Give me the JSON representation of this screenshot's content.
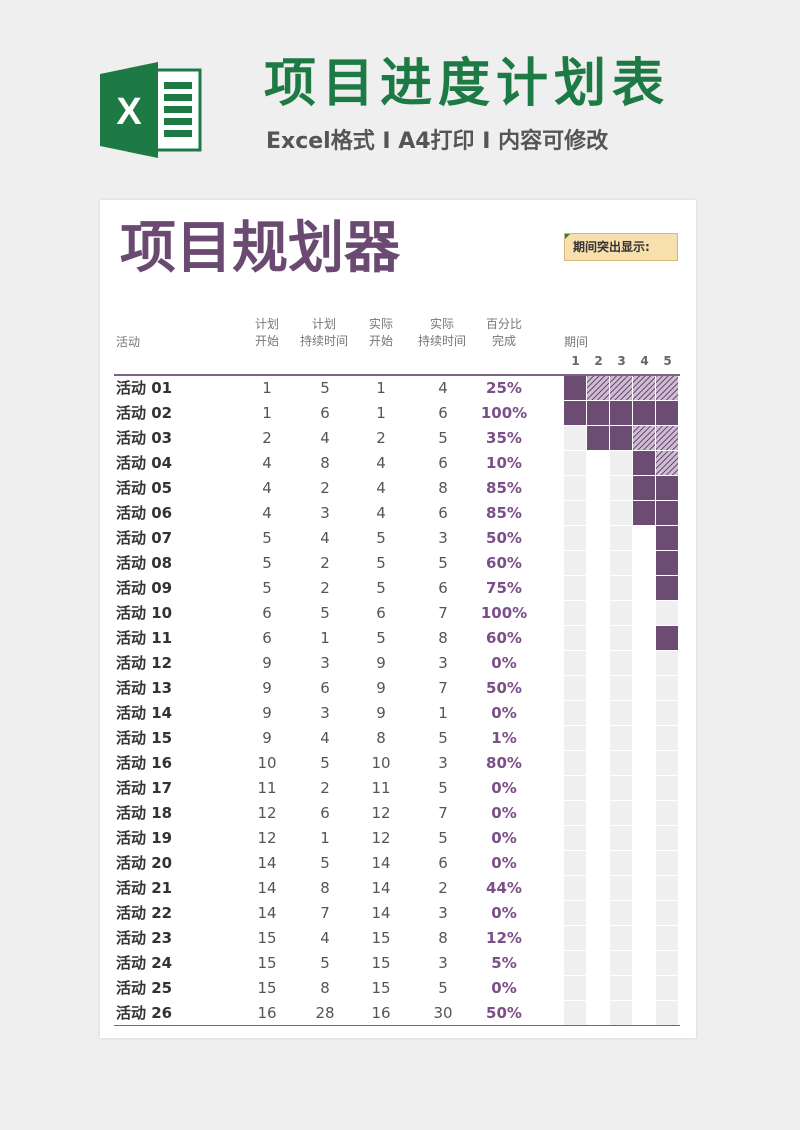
{
  "banner": {
    "title": "项目进度计划表",
    "subtitle": "Excel格式 I A4打印 I 内容可修改",
    "logo_letter": "X"
  },
  "sheet": {
    "title": "项目规划器",
    "highlight_label": "期间突出显示:",
    "headers": {
      "activity": "活动",
      "plan_start": [
        "计划",
        "开始"
      ],
      "plan_duration": [
        "计划",
        "持续时间"
      ],
      "actual_start": [
        "实际",
        "开始"
      ],
      "actual_duration": [
        "实际",
        "持续时间"
      ],
      "percent_complete": [
        "百分比",
        "完成"
      ],
      "period": "期间"
    },
    "periods": [
      "1",
      "2",
      "3",
      "4",
      "5"
    ],
    "colors": {
      "accent_purple": "#6d4c74",
      "plan_hatch": "#cdbdd2",
      "beyond_plan": "#e8a951",
      "title_green": "#1e7a45",
      "highlight_bg": "#f8dfae"
    },
    "activities": [
      {
        "name": "活动 01",
        "plan_start": "1",
        "plan_duration": "5",
        "actual_start": "1",
        "actual_duration": "4",
        "percent": "25%"
      },
      {
        "name": "活动 02",
        "plan_start": "1",
        "plan_duration": "6",
        "actual_start": "1",
        "actual_duration": "6",
        "percent": "100%"
      },
      {
        "name": "活动 03",
        "plan_start": "2",
        "plan_duration": "4",
        "actual_start": "2",
        "actual_duration": "5",
        "percent": "35%"
      },
      {
        "name": "活动 04",
        "plan_start": "4",
        "plan_duration": "8",
        "actual_start": "4",
        "actual_duration": "6",
        "percent": "10%"
      },
      {
        "name": "活动 05",
        "plan_start": "4",
        "plan_duration": "2",
        "actual_start": "4",
        "actual_duration": "8",
        "percent": "85%"
      },
      {
        "name": "活动 06",
        "plan_start": "4",
        "plan_duration": "3",
        "actual_start": "4",
        "actual_duration": "6",
        "percent": "85%"
      },
      {
        "name": "活动 07",
        "plan_start": "5",
        "plan_duration": "4",
        "actual_start": "5",
        "actual_duration": "3",
        "percent": "50%"
      },
      {
        "name": "活动 08",
        "plan_start": "5",
        "plan_duration": "2",
        "actual_start": "5",
        "actual_duration": "5",
        "percent": "60%"
      },
      {
        "name": "活动 09",
        "plan_start": "5",
        "plan_duration": "2",
        "actual_start": "5",
        "actual_duration": "6",
        "percent": "75%"
      },
      {
        "name": "活动 10",
        "plan_start": "6",
        "plan_duration": "5",
        "actual_start": "6",
        "actual_duration": "7",
        "percent": "100%"
      },
      {
        "name": "活动 11",
        "plan_start": "6",
        "plan_duration": "1",
        "actual_start": "5",
        "actual_duration": "8",
        "percent": "60%"
      },
      {
        "name": "活动 12",
        "plan_start": "9",
        "plan_duration": "3",
        "actual_start": "9",
        "actual_duration": "3",
        "percent": "0%"
      },
      {
        "name": "活动 13",
        "plan_start": "9",
        "plan_duration": "6",
        "actual_start": "9",
        "actual_duration": "7",
        "percent": "50%"
      },
      {
        "name": "活动 14",
        "plan_start": "9",
        "plan_duration": "3",
        "actual_start": "9",
        "actual_duration": "1",
        "percent": "0%"
      },
      {
        "name": "活动 15",
        "plan_start": "9",
        "plan_duration": "4",
        "actual_start": "8",
        "actual_duration": "5",
        "percent": "1%"
      },
      {
        "name": "活动 16",
        "plan_start": "10",
        "plan_duration": "5",
        "actual_start": "10",
        "actual_duration": "3",
        "percent": "80%"
      },
      {
        "name": "活动 17",
        "plan_start": "11",
        "plan_duration": "2",
        "actual_start": "11",
        "actual_duration": "5",
        "percent": "0%"
      },
      {
        "name": "活动 18",
        "plan_start": "12",
        "plan_duration": "6",
        "actual_start": "12",
        "actual_duration": "7",
        "percent": "0%"
      },
      {
        "name": "活动 19",
        "plan_start": "12",
        "plan_duration": "1",
        "actual_start": "12",
        "actual_duration": "5",
        "percent": "0%"
      },
      {
        "name": "活动 20",
        "plan_start": "14",
        "plan_duration": "5",
        "actual_start": "14",
        "actual_duration": "6",
        "percent": "0%"
      },
      {
        "name": "活动 21",
        "plan_start": "14",
        "plan_duration": "8",
        "actual_start": "14",
        "actual_duration": "2",
        "percent": "44%"
      },
      {
        "name": "活动 22",
        "plan_start": "14",
        "plan_duration": "7",
        "actual_start": "14",
        "actual_duration": "3",
        "percent": "0%"
      },
      {
        "name": "活动 23",
        "plan_start": "15",
        "plan_duration": "4",
        "actual_start": "15",
        "actual_duration": "8",
        "percent": "12%"
      },
      {
        "name": "活动 24",
        "plan_start": "15",
        "plan_duration": "5",
        "actual_start": "15",
        "actual_duration": "3",
        "percent": "5%"
      },
      {
        "name": "活动 25",
        "plan_start": "15",
        "plan_duration": "8",
        "actual_start": "15",
        "actual_duration": "5",
        "percent": "0%"
      },
      {
        "name": "活动 26",
        "plan_start": "16",
        "plan_duration": "28",
        "actual_start": "16",
        "actual_duration": "30",
        "percent": "50%"
      }
    ]
  }
}
